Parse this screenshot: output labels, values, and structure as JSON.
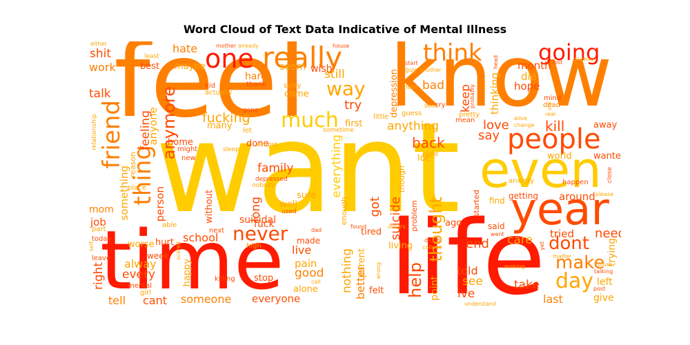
{
  "title": "Word Cloud of Text Data Indicative of Mental Illness",
  "palette": {
    "red": "#ff1a00",
    "orange_red": "#ff4a00",
    "orange": "#ff7f00",
    "amber": "#ffa500",
    "yellow": "#ffcc00",
    "light_yellow": "#ffe000"
  },
  "words": [
    {
      "text": "want"
    },
    {
      "text": "feel"
    },
    {
      "text": "know"
    },
    {
      "text": "life"
    },
    {
      "text": "time"
    },
    {
      "text": "even"
    },
    {
      "text": "year"
    },
    {
      "text": "people"
    },
    {
      "text": "one"
    },
    {
      "text": "really"
    },
    {
      "text": "think"
    },
    {
      "text": "going"
    },
    {
      "text": "much"
    },
    {
      "text": "friend"
    },
    {
      "text": "thing"
    },
    {
      "text": "way"
    },
    {
      "text": "day"
    },
    {
      "text": "dont"
    },
    {
      "text": "make"
    },
    {
      "text": "never"
    },
    {
      "text": "help"
    },
    {
      "text": "thought"
    },
    {
      "text": "anymore"
    },
    {
      "text": "fucking"
    },
    {
      "text": "back"
    },
    {
      "text": "family"
    },
    {
      "text": "everything"
    },
    {
      "text": "suicide"
    },
    {
      "text": "anything"
    },
    {
      "text": "still"
    },
    {
      "text": "bad"
    },
    {
      "text": "try"
    },
    {
      "text": "shit"
    },
    {
      "text": "hate"
    },
    {
      "text": "talk"
    },
    {
      "text": "work"
    },
    {
      "text": "feeling"
    },
    {
      "text": "anyone"
    },
    {
      "text": "something"
    },
    {
      "text": "person"
    },
    {
      "text": "live"
    },
    {
      "text": "good"
    },
    {
      "text": "pain"
    },
    {
      "text": "every"
    },
    {
      "text": "alway"
    },
    {
      "text": "right"
    },
    {
      "text": "tell"
    },
    {
      "text": "cant"
    },
    {
      "text": "someone"
    },
    {
      "text": "everyone"
    },
    {
      "text": "school"
    },
    {
      "text": "long"
    },
    {
      "text": "nothing"
    },
    {
      "text": "better"
    },
    {
      "text": "got"
    },
    {
      "text": "end"
    },
    {
      "text": "care"
    },
    {
      "text": "told"
    },
    {
      "text": "see"
    },
    {
      "text": "ive"
    },
    {
      "text": "take"
    },
    {
      "text": "last"
    },
    {
      "text": "left"
    },
    {
      "text": "give"
    },
    {
      "text": "need"
    },
    {
      "text": "trying"
    },
    {
      "text": "tried"
    },
    {
      "text": "around"
    },
    {
      "text": "kill"
    },
    {
      "text": "love"
    },
    {
      "text": "say"
    },
    {
      "text": "keep"
    },
    {
      "text": "thinking"
    },
    {
      "text": "hope"
    },
    {
      "text": "month"
    },
    {
      "text": "die"
    },
    {
      "text": "suicidal"
    },
    {
      "text": "hard"
    },
    {
      "text": "seem"
    },
    {
      "text": "wish"
    },
    {
      "text": "come"
    },
    {
      "text": "best"
    },
    {
      "text": "maybe"
    },
    {
      "text": "home"
    },
    {
      "text": "many"
    },
    {
      "text": "first"
    },
    {
      "text": "depression"
    },
    {
      "text": "job"
    },
    {
      "text": "mom"
    },
    {
      "text": "fuck"
    },
    {
      "text": "done"
    },
    {
      "text": "well"
    },
    {
      "text": "sure"
    },
    {
      "text": "made"
    },
    {
      "text": "without"
    },
    {
      "text": "happy"
    },
    {
      "text": "hurt"
    },
    {
      "text": "worse"
    },
    {
      "text": "week"
    },
    {
      "text": "stop"
    },
    {
      "text": "alone"
    },
    {
      "text": "felt"
    },
    {
      "text": "parent"
    },
    {
      "text": "tired"
    },
    {
      "text": "living"
    },
    {
      "text": "point"
    },
    {
      "text": "ago"
    },
    {
      "text": "lot"
    },
    {
      "text": "away"
    },
    {
      "text": "wanted"
    },
    {
      "text": "world"
    },
    {
      "text": "getting"
    },
    {
      "text": "find"
    },
    {
      "text": "said"
    },
    {
      "text": "started"
    },
    {
      "text": "problem"
    },
    {
      "text": "though"
    },
    {
      "text": "enough"
    },
    {
      "text": "reason"
    },
    {
      "text": "mind"
    },
    {
      "text": "dead"
    },
    {
      "text": "happen"
    },
    {
      "text": "anxiety"
    },
    {
      "text": "place"
    },
    {
      "text": "able"
    },
    {
      "text": "next"
    },
    {
      "text": "high"
    },
    {
      "text": "killing"
    },
    {
      "text": "mental"
    },
    {
      "text": "girl"
    },
    {
      "text": "leave"
    },
    {
      "text": "today"
    },
    {
      "text": "part"
    },
    {
      "text": "relationship"
    },
    {
      "text": "actually"
    },
    {
      "text": "kid"
    },
    {
      "text": "thank"
    },
    {
      "text": "sorry"
    },
    {
      "text": "cry"
    },
    {
      "text": "guess"
    },
    {
      "text": "pretty"
    },
    {
      "text": "mean"
    },
    {
      "text": "little"
    },
    {
      "text": "sometime"
    },
    {
      "text": "gone"
    },
    {
      "text": "let"
    },
    {
      "text": "almost"
    },
    {
      "text": "sleep"
    },
    {
      "text": "might"
    },
    {
      "text": "new"
    },
    {
      "text": "either"
    },
    {
      "text": "least"
    },
    {
      "text": "mother"
    },
    {
      "text": "already"
    },
    {
      "text": "house"
    },
    {
      "text": "start"
    },
    {
      "text": "guy"
    },
    {
      "text": "hour"
    },
    {
      "text": "another"
    },
    {
      "text": "head"
    },
    {
      "text": "lost"
    },
    {
      "text": "anyway"
    },
    {
      "text": "alive"
    },
    {
      "text": "change"
    },
    {
      "text": "old"
    },
    {
      "text": "real"
    },
    {
      "text": "close"
    },
    {
      "text": "please"
    },
    {
      "text": "night"
    },
    {
      "text": "probably"
    },
    {
      "text": "depressed"
    },
    {
      "text": "nobody"
    },
    {
      "text": "used"
    },
    {
      "text": "found"
    },
    {
      "text": "others"
    },
    {
      "text": "went"
    },
    {
      "text": "making"
    },
    {
      "text": "understand"
    },
    {
      "text": "talking"
    },
    {
      "text": "future"
    },
    {
      "text": "post"
    },
    {
      "text": "matter"
    },
    {
      "text": "scared"
    },
    {
      "text": "self"
    },
    {
      "text": "college"
    },
    {
      "text": "death"
    },
    {
      "text": "dad"
    },
    {
      "text": "call"
    },
    {
      "text": "wrong"
    },
    {
      "text": "book"
    },
    {
      "text": "yet"
    }
  ]
}
